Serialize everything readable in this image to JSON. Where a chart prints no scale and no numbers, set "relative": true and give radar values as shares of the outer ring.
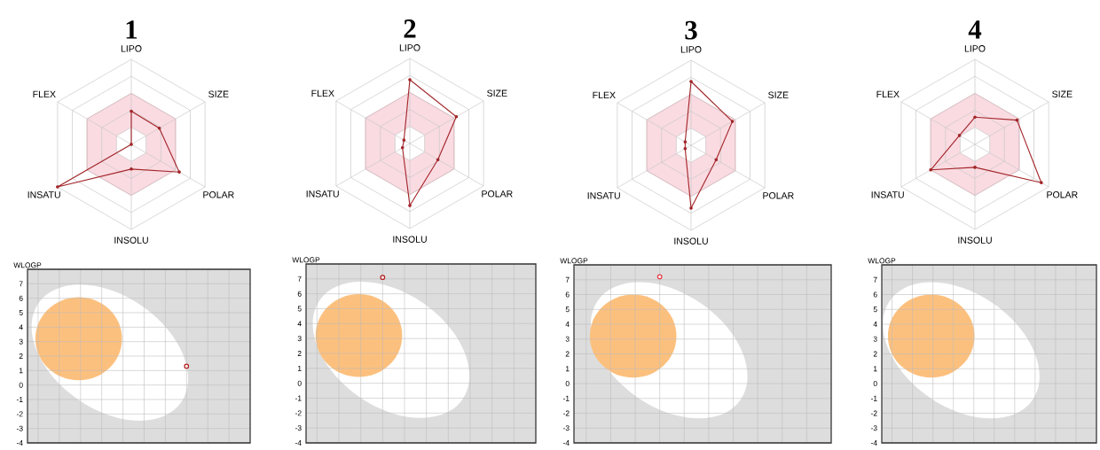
{
  "chart_data": [
    {
      "type": "radar",
      "title": "1",
      "categories": [
        "LIPO",
        "SIZE",
        "POLAR",
        "INSOLU",
        "INSATU",
        "FLEX"
      ],
      "relative": true,
      "grid": true,
      "marker": "circle",
      "series": [
        {
          "color": "#a3262a",
          "values": [
            0.39,
            0.38,
            0.65,
            0.29,
            1.0,
            0.0
          ]
        }
      ]
    },
    {
      "type": "radar",
      "title": "2",
      "categories": [
        "LIPO",
        "SIZE",
        "POLAR",
        "INSOLU",
        "INSATU",
        "FLEX"
      ],
      "relative": true,
      "grid": true,
      "marker": "circle",
      "series": [
        {
          "color": "#a3262a",
          "values": [
            0.75,
            0.63,
            0.38,
            0.73,
            0.1,
            0.08
          ]
        }
      ]
    },
    {
      "type": "radar",
      "title": "3",
      "categories": [
        "LIPO",
        "SIZE",
        "POLAR",
        "INSOLU",
        "INSATU",
        "FLEX"
      ],
      "relative": true,
      "grid": true,
      "marker": "circle",
      "series": [
        {
          "color": "#a3262a",
          "values": [
            0.75,
            0.56,
            0.34,
            0.74,
            0.08,
            0.08
          ]
        }
      ]
    },
    {
      "type": "radar",
      "title": "4",
      "categories": [
        "LIPO",
        "SIZE",
        "POLAR",
        "INSOLU",
        "INSATU",
        "FLEX"
      ],
      "relative": true,
      "grid": true,
      "marker": "circle",
      "series": [
        {
          "color": "#a3262a",
          "values": [
            0.32,
            0.57,
            0.9,
            0.27,
            0.6,
            0.21
          ]
        }
      ]
    },
    {
      "type": "scatter",
      "ylabel": "WLOGP",
      "categories": [
        null,
        null,
        null,
        null,
        null,
        null,
        null,
        null,
        null,
        null
      ],
      "values": [
        null,
        null,
        null,
        null,
        null,
        null,
        null,
        1.3,
        null,
        null
      ],
      "color": "#b22222",
      "ylim": [
        -4,
        8
      ],
      "yticks": [
        -4,
        -3,
        -2,
        -1,
        0,
        1,
        2,
        3,
        4,
        5,
        6,
        7
      ],
      "grid": true,
      "marker": "circle",
      "tick_labels": "y"
    },
    {
      "type": "scatter",
      "ylabel": "WLOGP",
      "categories": [
        null,
        null,
        null,
        null,
        null,
        null,
        null,
        null,
        null,
        null
      ],
      "values": [
        null,
        null,
        null,
        7.1,
        null,
        null,
        null,
        null,
        null,
        null
      ],
      "color": "#b22222",
      "ylim": [
        -4,
        8
      ],
      "yticks": [
        -4,
        -3,
        -2,
        -1,
        0,
        1,
        2,
        3,
        4,
        5,
        6,
        7
      ],
      "grid": true,
      "marker": "circle",
      "tick_labels": "y"
    },
    {
      "type": "scatter",
      "ylabel": "WLOGP",
      "categories": [
        null,
        null,
        null,
        null,
        null,
        null,
        null,
        null,
        null,
        null
      ],
      "values": [
        null,
        null,
        null,
        7.2,
        null,
        null,
        null,
        null,
        null,
        null
      ],
      "color": "#e8414a",
      "ylim": [
        -4,
        8
      ],
      "yticks": [
        -4,
        -3,
        -2,
        -1,
        0,
        1,
        2,
        3,
        4,
        5,
        6,
        7
      ],
      "grid": true,
      "marker": "circle",
      "tick_labels": "y"
    },
    {
      "type": "scatter",
      "ylabel": "WLOGP",
      "categories": [
        null,
        null,
        null,
        null,
        null,
        null,
        null,
        null,
        null,
        null
      ],
      "values": [
        null,
        null,
        null,
        null,
        null,
        null,
        null,
        null,
        null,
        null
      ],
      "color": "#b22222",
      "ylim": [
        -4,
        8
      ],
      "yticks": [
        -4,
        -3,
        -2,
        -1,
        0,
        1,
        2,
        3,
        4,
        5,
        6,
        7
      ],
      "grid": true,
      "marker": "circle",
      "tick_labels": "y"
    }
  ]
}
